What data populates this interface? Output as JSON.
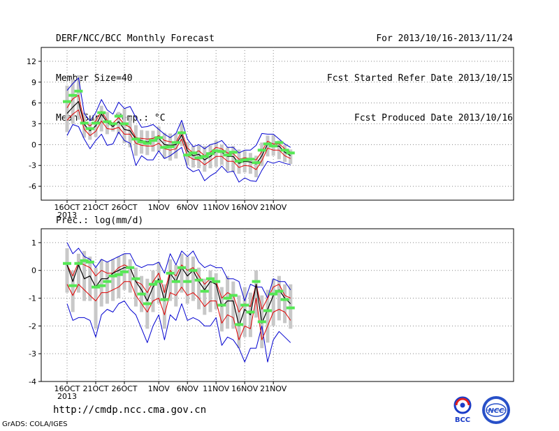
{
  "header": {
    "left": [
      "DERF/NCC/BCC Monthly Forecast",
      "Member Size=40",
      "Mean Surf. Temp.: °C"
    ],
    "right": [
      "For 2013/10/16-2013/11/24",
      "Fcst Started Refer Date 2013/10/15",
      "Fcst Produced Date 2013/10/16"
    ]
  },
  "footer": {
    "url": "http://cmdp.ncc.cma.gov.cn",
    "grads": "GrADS: COLA/IGES",
    "logo_bcc_text": "BCC",
    "logo_ncc_text": "NCC"
  },
  "colors": {
    "spread_bar": "#c8c8c8",
    "observed": "#55e855",
    "mean": "#000000",
    "percentile_band": "#e00000",
    "envelope": "#0000d0",
    "grid": "#888888"
  },
  "chart_data": [
    {
      "type": "line",
      "title": "Mean Surf. Temp.: °C",
      "x_start_date": "2013-10-16",
      "x_dates": [
        "2013-10-16",
        "2013-10-17",
        "2013-10-18",
        "2013-10-19",
        "2013-10-20",
        "2013-10-21",
        "2013-10-22",
        "2013-10-23",
        "2013-10-24",
        "2013-10-25",
        "2013-10-26",
        "2013-10-27",
        "2013-10-28",
        "2013-10-29",
        "2013-10-30",
        "2013-10-31",
        "2013-11-01",
        "2013-11-02",
        "2013-11-03",
        "2013-11-04",
        "2013-11-05",
        "2013-11-06",
        "2013-11-07",
        "2013-11-08",
        "2013-11-09",
        "2013-11-10",
        "2013-11-11",
        "2013-11-12",
        "2013-11-13",
        "2013-11-14",
        "2013-11-15",
        "2013-11-16",
        "2013-11-17",
        "2013-11-18",
        "2013-11-19",
        "2013-11-20",
        "2013-11-21",
        "2013-11-22",
        "2013-11-23",
        "2013-11-24"
      ],
      "xticks": [
        "16OCT",
        "21OCT",
        "26OCT",
        "1NOV",
        "6NOV",
        "11NOV",
        "16NOV",
        "21NOV"
      ],
      "xtick_index": [
        0,
        5,
        10,
        16,
        21,
        26,
        31,
        36
      ],
      "year_label": "2013",
      "ylim": [
        -8,
        14
      ],
      "yticks": [
        -6,
        -3,
        0,
        3,
        6,
        9,
        12
      ],
      "series": [
        {
          "name": "max",
          "role": "envelope",
          "values": [
            7.8,
            8.8,
            9.6,
            4.5,
            3.4,
            4.6,
            6.5,
            5.0,
            4.4,
            6.1,
            5.2,
            5.5,
            3.9,
            2.5,
            2.6,
            2.9,
            2.2,
            1.5,
            1.0,
            1.6,
            3.5,
            0.8,
            -0.3,
            0.0,
            -0.6,
            0.0,
            0.2,
            0.6,
            -0.4,
            -0.4,
            -1.2,
            -0.8,
            -0.8,
            -0.1,
            1.6,
            1.5,
            1.5,
            0.8,
            0.1,
            -0.4
          ]
        },
        {
          "name": "min",
          "role": "envelope",
          "values": [
            1.3,
            2.9,
            2.6,
            0.8,
            -0.6,
            0.6,
            1.5,
            -0.1,
            0.1,
            1.8,
            0.6,
            0.2,
            -3.0,
            -1.6,
            -2.2,
            -2.2,
            -0.9,
            -2.0,
            -1.6,
            -1.0,
            -0.4,
            -3.3,
            -3.9,
            -3.6,
            -5.2,
            -4.5,
            -4.0,
            -3.1,
            -4.0,
            -3.8,
            -5.4,
            -4.8,
            -5.2,
            -5.3,
            -3.7,
            -2.4,
            -2.7,
            -2.4,
            -2.7,
            -2.9
          ]
        },
        {
          "name": "p90",
          "role": "band",
          "values": [
            5.3,
            6.6,
            7.1,
            3.2,
            2.7,
            3.4,
            4.8,
            3.5,
            3.1,
            3.9,
            2.9,
            2.5,
            1.0,
            0.9,
            0.8,
            0.9,
            1.3,
            0.6,
            0.4,
            0.3,
            1.9,
            -0.5,
            -1.2,
            -0.9,
            -1.6,
            -1.1,
            -0.4,
            -0.6,
            -1.2,
            -1.3,
            -2.1,
            -1.9,
            -2.0,
            -2.2,
            -1.0,
            0.5,
            0.1,
            0.1,
            -0.6,
            -1.1
          ]
        },
        {
          "name": "mean",
          "role": "mean",
          "values": [
            4.5,
            5.4,
            6.2,
            2.9,
            2.0,
            2.7,
            4.4,
            3.2,
            2.6,
            3.3,
            2.2,
            2.0,
            0.8,
            0.6,
            0.4,
            0.6,
            0.9,
            0.0,
            -0.1,
            0.0,
            1.4,
            -0.9,
            -1.6,
            -1.4,
            -2.2,
            -1.7,
            -1.0,
            -1.1,
            -1.7,
            -1.7,
            -2.7,
            -2.4,
            -2.5,
            -2.8,
            -1.6,
            0.1,
            -0.3,
            -0.2,
            -1.1,
            -1.6
          ]
        },
        {
          "name": "p10",
          "role": "band",
          "values": [
            3.5,
            4.4,
            5.0,
            2.2,
            1.3,
            1.9,
            3.4,
            2.3,
            2.2,
            2.5,
            1.5,
            1.5,
            0.2,
            -0.1,
            -0.2,
            -0.2,
            0.2,
            -0.6,
            -0.8,
            -0.6,
            0.8,
            -1.6,
            -2.1,
            -2.2,
            -2.9,
            -2.3,
            -1.7,
            -1.7,
            -2.4,
            -2.4,
            -3.3,
            -3.0,
            -3.1,
            -3.6,
            -2.3,
            -0.5,
            -0.8,
            -0.8,
            -1.6,
            -2.0
          ]
        },
        {
          "name": "observed",
          "role": "observed",
          "values": [
            6.2,
            7.1,
            7.7,
            3.1,
            2.3,
            3.1,
            4.6,
            3.3,
            3.0,
            4.1,
            3.0,
            null,
            0.8,
            0.4,
            0.2,
            0.6,
            1.0,
            -0.4,
            -0.3,
            0.3,
            1.7,
            -1.5,
            -1.2,
            -1.9,
            -1.7,
            -1.3,
            -0.9,
            -1.0,
            -1.5,
            -1.1,
            -2.4,
            -2.2,
            -2.1,
            -2.6,
            -0.8,
            0.1,
            -0.2,
            0.3,
            -0.8,
            -1.2
          ]
        },
        {
          "name": "spread_hi",
          "role": "spread",
          "values": [
            8.5,
            9.4,
            10.0,
            4.6,
            3.2,
            3.8,
            5.6,
            4.7,
            3.2,
            4.7,
            5.2,
            4.0,
            2.8,
            2.1,
            2.0,
            2.0,
            2.6,
            1.7,
            1.6,
            1.6,
            3.1,
            0.4,
            -0.2,
            -0.1,
            -0.2,
            -0.1,
            0.6,
            0.0,
            -0.4,
            -0.2,
            -0.7,
            -0.9,
            -1.2,
            -1.6,
            0.3,
            1.3,
            1.4,
            0.6,
            0.0,
            -0.7
          ]
        },
        {
          "name": "spread_lo",
          "role": "spread",
          "values": [
            1.8,
            3.0,
            3.6,
            1.0,
            0.7,
            1.1,
            1.9,
            1.5,
            1.9,
            1.5,
            0.2,
            -0.4,
            -1.6,
            -1.3,
            -1.5,
            -1.0,
            -1.0,
            -2.0,
            -2.3,
            -2.0,
            -0.2,
            -3.0,
            -3.3,
            -3.4,
            -3.9,
            -3.4,
            -3.2,
            -2.9,
            -3.8,
            -4.0,
            -4.2,
            -4.0,
            -4.2,
            -4.7,
            -3.1,
            -1.7,
            -1.6,
            -2.1,
            -2.5,
            -2.8
          ]
        }
      ]
    },
    {
      "type": "line",
      "title": "Prec.: log(mm/d)",
      "x_start_date": "2013-10-16",
      "xticks": [
        "16OCT",
        "21OCT",
        "26OCT",
        "1NOV",
        "6NOV",
        "11NOV",
        "16NOV",
        "21NOV"
      ],
      "xtick_index": [
        0,
        5,
        10,
        16,
        21,
        26,
        31,
        36
      ],
      "year_label": "2013",
      "ylim": [
        -4,
        1.5
      ],
      "yticks": [
        -4,
        -3,
        -2,
        -1,
        0,
        1
      ],
      "series": [
        {
          "name": "max",
          "role": "envelope",
          "values": [
            1.0,
            0.6,
            0.8,
            0.5,
            0.4,
            0.1,
            0.4,
            0.3,
            0.4,
            0.5,
            0.6,
            0.6,
            0.2,
            0.1,
            0.2,
            0.2,
            0.3,
            -0.1,
            0.6,
            0.2,
            0.7,
            0.5,
            0.7,
            0.3,
            0.1,
            0.2,
            0.1,
            0.1,
            -0.3,
            -0.3,
            -0.4,
            -1.1,
            -0.5,
            -0.6,
            -0.6,
            -1.0,
            -0.3,
            -0.4,
            -0.4,
            -0.7
          ]
        },
        {
          "name": "min",
          "role": "envelope",
          "values": [
            -1.2,
            -1.8,
            -1.7,
            -1.7,
            -1.8,
            -2.4,
            -1.6,
            -1.4,
            -1.5,
            -1.2,
            -1.1,
            -1.4,
            -1.6,
            -2.1,
            -2.6,
            -2.0,
            -1.6,
            -2.5,
            -1.6,
            -1.8,
            -1.2,
            -1.8,
            -1.7,
            -1.8,
            -2.0,
            -2.0,
            -1.7,
            -2.7,
            -2.4,
            -2.5,
            -2.8,
            -3.3,
            -2.8,
            -2.8,
            -2.0,
            -3.3,
            -2.5,
            -2.2,
            -2.4,
            -2.6
          ]
        },
        {
          "name": "p90",
          "role": "band",
          "values": [
            0.2,
            -0.2,
            0.3,
            0.2,
            0.1,
            -0.2,
            0.0,
            -0.1,
            -0.1,
            0.1,
            0.2,
            0.1,
            -0.4,
            -0.5,
            -0.8,
            -0.4,
            -0.1,
            -0.8,
            0.0,
            -0.2,
            0.2,
            0.0,
            0.1,
            -0.2,
            -0.5,
            -0.3,
            -0.4,
            -1.0,
            -0.8,
            -0.9,
            -1.5,
            -1.2,
            -1.3,
            -0.5,
            -1.4,
            -1.0,
            -0.6,
            -0.5,
            -0.9,
            -1.0
          ]
        },
        {
          "name": "mean",
          "role": "mean",
          "values": [
            0.2,
            -0.4,
            0.2,
            -0.3,
            -0.2,
            -0.6,
            -0.3,
            -0.3,
            -0.1,
            0.0,
            0.1,
            0.1,
            -0.4,
            -0.7,
            -1.1,
            -0.6,
            -0.3,
            -1.1,
            -0.1,
            -0.4,
            0.1,
            -0.2,
            0.0,
            -0.4,
            -0.7,
            -0.4,
            -0.5,
            -1.3,
            -1.1,
            -1.1,
            -2.0,
            -1.4,
            -1.6,
            -0.5,
            -1.9,
            -1.4,
            -0.9,
            -0.7,
            -1.0,
            -1.2
          ]
        },
        {
          "name": "p10",
          "role": "band",
          "values": [
            -0.5,
            -0.9,
            -0.5,
            -0.7,
            -0.9,
            -1.1,
            -0.8,
            -0.8,
            -0.7,
            -0.6,
            -0.4,
            -0.4,
            -0.9,
            -1.2,
            -1.5,
            -1.1,
            -1.0,
            -1.6,
            -0.8,
            -0.9,
            -0.6,
            -0.9,
            -0.8,
            -1.0,
            -1.3,
            -1.1,
            -1.1,
            -1.9,
            -1.6,
            -1.7,
            -2.5,
            -2.0,
            -2.1,
            -1.0,
            -2.5,
            -2.0,
            -1.5,
            -1.4,
            -1.5,
            -1.8
          ]
        },
        {
          "name": "observed",
          "role": "observed",
          "values": [
            0.25,
            -0.55,
            0.25,
            0.35,
            0.3,
            -0.6,
            -0.55,
            -0.4,
            -0.2,
            -0.15,
            -0.05,
            0.1,
            -0.3,
            -0.85,
            -1.2,
            -0.5,
            -0.4,
            -1.05,
            -0.1,
            -0.4,
            0.1,
            -0.4,
            0.0,
            -0.35,
            -0.75,
            -0.3,
            -0.4,
            -1.25,
            -1.0,
            -0.9,
            -1.95,
            -1.25,
            -1.5,
            -0.4,
            -1.85,
            -1.45,
            -0.85,
            -0.75,
            -1.05,
            -1.35
          ]
        },
        {
          "name": "spread_hi",
          "role": "spread",
          "values": [
            0.8,
            0.0,
            0.6,
            0.7,
            0.5,
            0.1,
            0.4,
            0.3,
            0.4,
            0.5,
            0.6,
            0.4,
            0.1,
            -0.2,
            -0.3,
            0.0,
            0.3,
            -0.5,
            0.4,
            0.2,
            0.6,
            0.5,
            0.5,
            0.1,
            -0.3,
            0.0,
            -0.1,
            -0.6,
            -0.2,
            -0.4,
            -0.9,
            -0.6,
            -0.8,
            0.0,
            -0.9,
            -0.7,
            -0.3,
            -0.2,
            -0.5,
            -0.5
          ]
        },
        {
          "name": "spread_lo",
          "role": "spread",
          "values": [
            -0.8,
            -1.5,
            -0.8,
            -1.1,
            -1.1,
            -2.1,
            -1.3,
            -1.2,
            -1.1,
            -1.0,
            -0.7,
            -0.8,
            -1.3,
            -1.5,
            -2.1,
            -1.5,
            -1.2,
            -2.1,
            -1.1,
            -1.3,
            -0.8,
            -1.2,
            -1.1,
            -1.4,
            -1.6,
            -1.5,
            -1.4,
            -2.2,
            -2.1,
            -2.1,
            -2.8,
            -2.4,
            -2.4,
            -1.7,
            -2.8,
            -2.6,
            -2.0,
            -1.8,
            -1.9,
            -2.1
          ]
        }
      ]
    }
  ]
}
